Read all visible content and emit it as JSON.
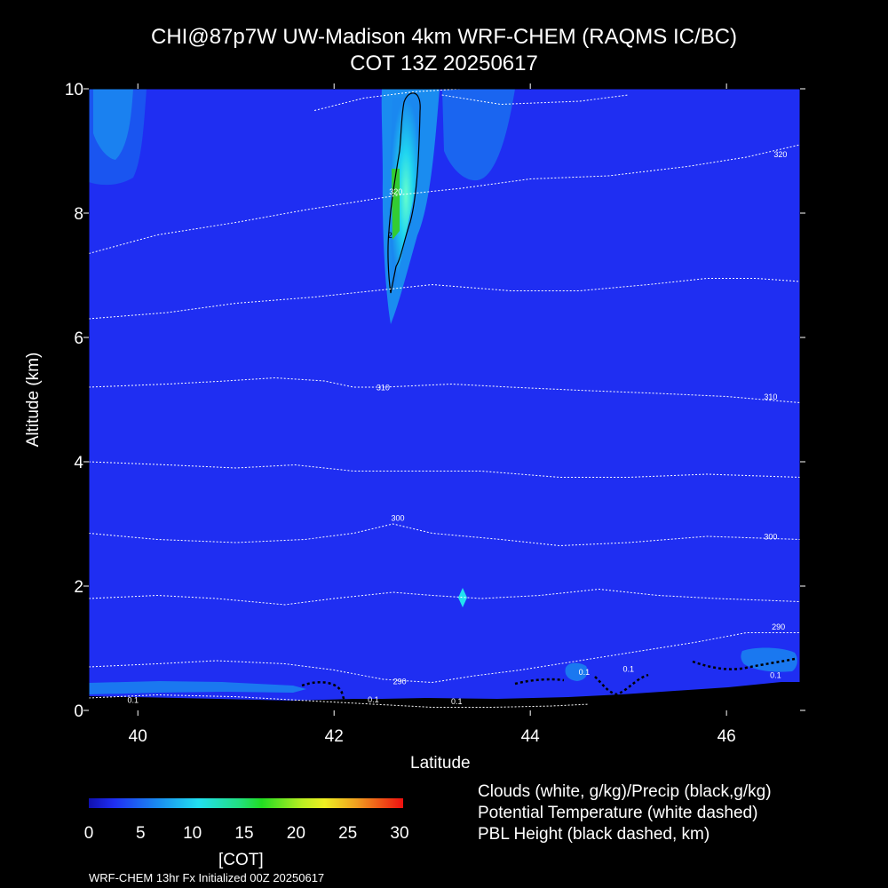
{
  "title": [
    "CHI@87p7W UW-Madison 4km WRF-CHEM (RAQMS IC/BC)",
    "COT 13Z 20250617"
  ],
  "colors": {
    "background": "#000000",
    "field": "#1f2ef2",
    "cloud_core": "#22d4f0",
    "green_core": "#33cc33"
  },
  "chart_data": {
    "type": "heatmap",
    "xlabel": "Latitude",
    "ylabel": "Altitude (km)",
    "xlim": [
      39.5,
      46.75
    ],
    "ylim": [
      0,
      10
    ],
    "xticks": [
      "40",
      "42",
      "44",
      "46"
    ],
    "yticks": [
      "0",
      "2",
      "4",
      "6",
      "8",
      "10"
    ],
    "theta_labels": [
      {
        "text": "320",
        "x": 46.55,
        "y": 8.9
      },
      {
        "text": "320",
        "x": 42.63,
        "y": 8.3
      },
      {
        "text": "310",
        "x": 42.5,
        "y": 5.15
      },
      {
        "text": "310",
        "x": 46.45,
        "y": 5.0
      },
      {
        "text": "300",
        "x": 42.65,
        "y": 3.05
      },
      {
        "text": "300",
        "x": 46.45,
        "y": 2.75
      },
      {
        "text": "290",
        "x": 46.53,
        "y": 1.3
      },
      {
        "text": "290",
        "x": 42.67,
        "y": 0.42
      },
      {
        "text": "0.1",
        "x": 39.95,
        "y": 0.12
      },
      {
        "text": "0.1",
        "x": 42.4,
        "y": 0.13
      },
      {
        "text": "0.1",
        "x": 43.25,
        "y": 0.1
      },
      {
        "text": "0.1",
        "x": 44.55,
        "y": 0.57
      },
      {
        "text": "0.1",
        "x": 45.0,
        "y": 0.62
      },
      {
        "text": "0.1",
        "x": 46.5,
        "y": 0.52
      },
      {
        "text": "2",
        "x": 42.57,
        "y": 7.6
      }
    ],
    "theta_contours": [
      [
        [
          39.5,
          7.35
        ],
        [
          40.2,
          7.65
        ],
        [
          41.0,
          7.85
        ],
        [
          41.7,
          8.05
        ],
        [
          42.3,
          8.2
        ],
        [
          42.7,
          8.3
        ],
        [
          43.3,
          8.4
        ],
        [
          44.0,
          8.55
        ],
        [
          44.8,
          8.6
        ],
        [
          45.6,
          8.75
        ],
        [
          46.2,
          8.9
        ],
        [
          46.75,
          9.1
        ]
      ],
      [
        [
          41.8,
          9.65
        ],
        [
          42.3,
          9.85
        ],
        [
          42.8,
          9.95
        ],
        [
          43.3,
          10.0
        ]
      ],
      [
        [
          43.1,
          9.9
        ],
        [
          43.7,
          9.75
        ],
        [
          44.5,
          9.8
        ],
        [
          45.0,
          9.9
        ]
      ],
      [
        [
          39.5,
          6.3
        ],
        [
          40.3,
          6.4
        ],
        [
          41.0,
          6.55
        ],
        [
          41.8,
          6.65
        ],
        [
          42.4,
          6.75
        ],
        [
          43.0,
          6.85
        ],
        [
          43.8,
          6.75
        ],
        [
          44.5,
          6.75
        ],
        [
          45.2,
          6.85
        ],
        [
          45.8,
          6.95
        ],
        [
          46.3,
          6.95
        ],
        [
          46.75,
          6.9
        ]
      ],
      [
        [
          39.5,
          5.2
        ],
        [
          40.3,
          5.25
        ],
        [
          40.9,
          5.3
        ],
        [
          41.4,
          5.35
        ],
        [
          41.9,
          5.3
        ],
        [
          42.2,
          5.2
        ],
        [
          42.5,
          5.2
        ],
        [
          43.2,
          5.25
        ],
        [
          43.8,
          5.2
        ],
        [
          44.5,
          5.15
        ],
        [
          45.3,
          5.1
        ],
        [
          46.0,
          5.05
        ],
        [
          46.75,
          4.95
        ]
      ],
      [
        [
          39.5,
          4.0
        ],
        [
          40.3,
          3.95
        ],
        [
          41.0,
          3.9
        ],
        [
          41.6,
          3.95
        ],
        [
          42.2,
          3.85
        ],
        [
          42.8,
          3.85
        ],
        [
          43.5,
          3.85
        ],
        [
          44.3,
          3.75
        ],
        [
          45.0,
          3.75
        ],
        [
          45.8,
          3.8
        ],
        [
          46.75,
          3.75
        ]
      ],
      [
        [
          39.5,
          2.85
        ],
        [
          40.2,
          2.75
        ],
        [
          41.0,
          2.7
        ],
        [
          41.7,
          2.75
        ],
        [
          42.2,
          2.85
        ],
        [
          42.6,
          3.0
        ],
        [
          43.0,
          2.85
        ],
        [
          43.7,
          2.75
        ],
        [
          44.3,
          2.65
        ],
        [
          45.0,
          2.7
        ],
        [
          45.8,
          2.8
        ],
        [
          46.75,
          2.75
        ]
      ],
      [
        [
          39.5,
          1.8
        ],
        [
          40.2,
          1.85
        ],
        [
          40.8,
          1.8
        ],
        [
          41.5,
          1.7
        ],
        [
          42.0,
          1.8
        ],
        [
          42.6,
          1.9
        ],
        [
          43.0,
          1.85
        ],
        [
          43.5,
          1.8
        ],
        [
          44.1,
          1.85
        ],
        [
          44.7,
          1.95
        ],
        [
          45.3,
          1.85
        ],
        [
          45.9,
          1.8
        ],
        [
          46.75,
          1.75
        ]
      ],
      [
        [
          39.5,
          0.7
        ],
        [
          40.2,
          0.75
        ],
        [
          40.8,
          0.8
        ],
        [
          41.5,
          0.75
        ],
        [
          42.0,
          0.65
        ],
        [
          42.5,
          0.5
        ],
        [
          43.0,
          0.45
        ],
        [
          43.4,
          0.55
        ],
        [
          43.9,
          0.65
        ],
        [
          44.5,
          0.8
        ],
        [
          45.1,
          0.95
        ],
        [
          45.7,
          1.1
        ],
        [
          46.2,
          1.25
        ],
        [
          46.75,
          1.25
        ]
      ],
      [
        [
          39.5,
          0.2
        ],
        [
          40.2,
          0.25
        ],
        [
          41.0,
          0.22
        ],
        [
          41.8,
          0.15
        ],
        [
          42.4,
          0.1
        ],
        [
          43.0,
          0.05
        ],
        [
          43.6,
          0.05
        ],
        [
          44.2,
          0.07
        ],
        [
          44.6,
          0.1
        ]
      ]
    ],
    "colorbar": {
      "label": "[COT]",
      "min": 0,
      "max": 30,
      "ticks": [
        "0",
        "5",
        "10",
        "15",
        "20",
        "25",
        "30"
      ]
    },
    "legend": [
      "Clouds (white, g/kg)/Precip (black,g/kg)",
      "Potential Temperature (white dashed)",
      "PBL Height (black dashed, km)"
    ]
  },
  "footer": "WRF-CHEM 13hr  Fx Initialized 00Z 20250617"
}
